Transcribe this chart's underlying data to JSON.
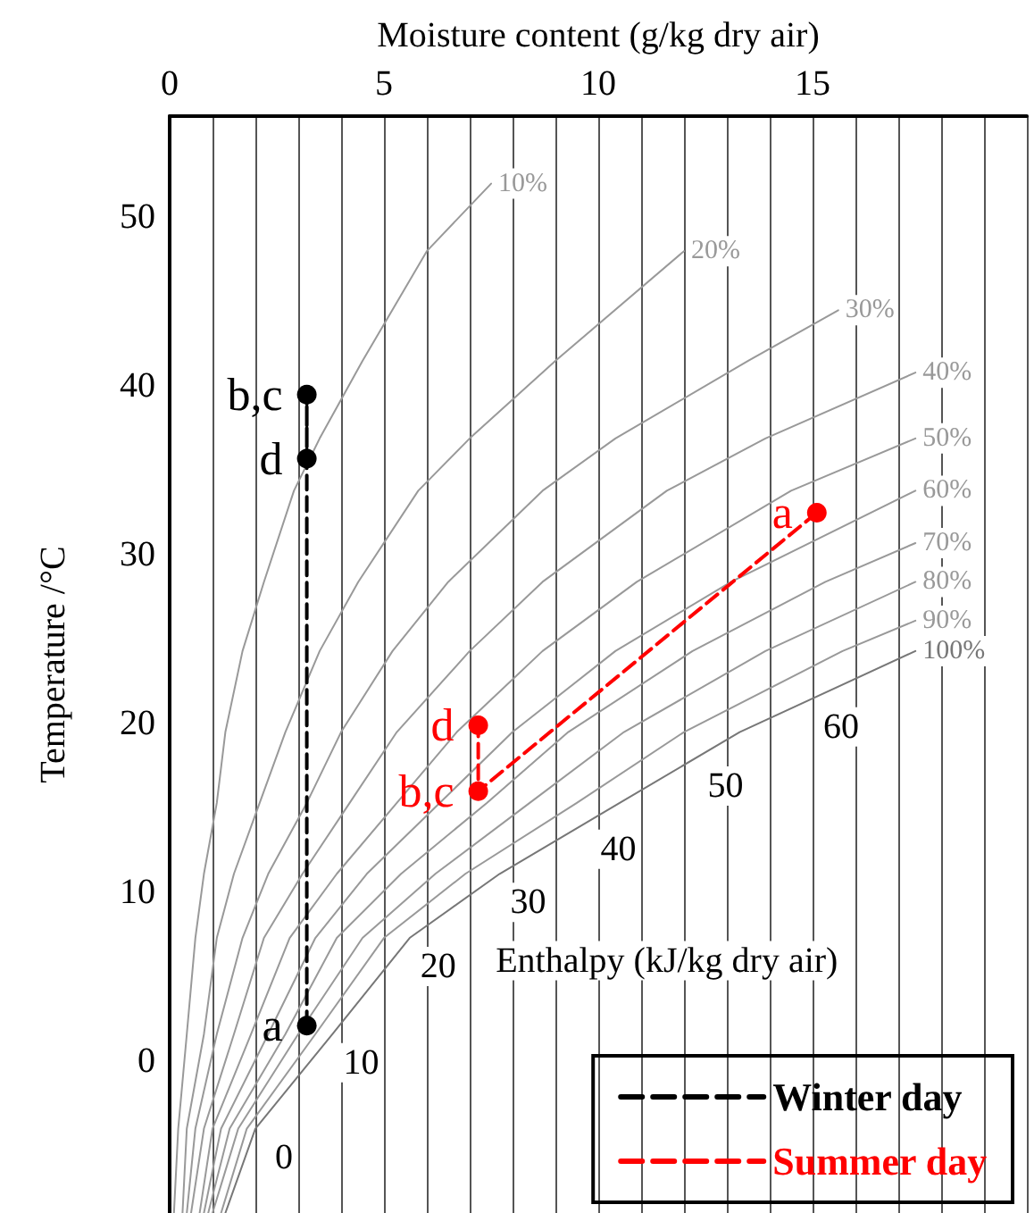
{
  "chart_data": {
    "type": "line",
    "xlabel": "Moisture content (g/kg dry air)",
    "ylabel": "Temperature /°C",
    "xlim": [
      0,
      20
    ],
    "xticks": [
      0,
      {
        "value": 1,
        "label": null
      },
      {
        "value": 2,
        "label": null
      },
      {
        "value": 3,
        "label": null
      },
      {
        "value": 4,
        "label": null
      },
      5,
      {
        "value": 6,
        "label": null
      },
      {
        "value": 7,
        "label": null
      },
      {
        "value": 8,
        "label": null
      },
      {
        "value": 9,
        "label": null
      },
      10,
      {
        "value": 11,
        "label": null
      },
      {
        "value": 12,
        "label": null
      },
      {
        "value": 13,
        "label": null
      },
      {
        "value": 14,
        "label": null
      },
      15,
      {
        "value": 16,
        "label": null
      },
      {
        "value": 17,
        "label": null
      },
      {
        "value": 18,
        "label": null
      },
      {
        "value": 19,
        "label": null
      },
      {
        "value": 20,
        "label": null
      }
    ],
    "ylim": [
      -9,
      56
    ],
    "yticks": [
      0,
      10,
      20,
      30,
      40,
      50
    ],
    "grid": "x",
    "legend": "bottom right",
    "marker": "circle",
    "line_style": "dashed",
    "series": [
      {
        "name": "10%",
        "color": "#999999",
        "marker": "none",
        "line_style": "solid",
        "x": [
          0.1,
          0.2,
          0.4,
          0.6,
          0.8,
          1.1,
          1.3,
          1.7,
          2.2,
          2.9,
          3.5,
          4.5,
          6.0,
          7.5
        ],
        "values": [
          -9,
          -4,
          1.6,
          7.3,
          11.1,
          15.3,
          19.5,
          24.3,
          28.4,
          33.8,
          36.9,
          41.5,
          48,
          52
        ]
      },
      {
        "name": "20%",
        "color": "#999999",
        "marker": "none",
        "line_style": "solid",
        "x": [
          0.3,
          0.4,
          0.8,
          1.1,
          1.5,
          2.1,
          2.7,
          3.5,
          4.4,
          5.8,
          7.0,
          9.0,
          12.0
        ],
        "values": [
          -9,
          -4,
          1.6,
          7.3,
          11.1,
          15.3,
          19.5,
          24.3,
          28.4,
          33.8,
          36.9,
          41.5,
          48
        ]
      },
      {
        "name": "30%",
        "color": "#999999",
        "marker": "none",
        "line_style": "solid",
        "x": [
          0.4,
          0.6,
          1.1,
          1.7,
          2.3,
          3.2,
          4.0,
          5.2,
          6.5,
          8.7,
          10.4,
          13.5,
          15.6
        ],
        "values": [
          -9,
          -4,
          1.6,
          7.3,
          11.1,
          15.3,
          19.5,
          24.3,
          28.4,
          33.8,
          36.9,
          41.5,
          44.5
        ]
      },
      {
        "name": "40%",
        "color": "#999999",
        "marker": "none",
        "line_style": "solid",
        "x": [
          0.5,
          0.8,
          1.5,
          2.2,
          3.1,
          4.2,
          5.3,
          7.0,
          8.7,
          11.6,
          13.9,
          17.4
        ],
        "values": [
          -9,
          -4,
          1.6,
          7.3,
          11.1,
          15.3,
          19.5,
          24.3,
          28.4,
          33.8,
          36.9,
          40.8
        ]
      },
      {
        "name": "50%",
        "color": "#999999",
        "marker": "none",
        "line_style": "solid",
        "x": [
          0.7,
          1.0,
          1.9,
          2.8,
          3.9,
          5.3,
          6.7,
          8.7,
          10.9,
          14.5,
          17.4
        ],
        "values": [
          -9,
          -4,
          1.6,
          7.3,
          11.1,
          15.3,
          19.5,
          24.3,
          28.4,
          33.8,
          36.9
        ]
      },
      {
        "name": "60%",
        "color": "#999999",
        "marker": "none",
        "line_style": "solid",
        "x": [
          0.8,
          1.2,
          2.3,
          3.4,
          4.6,
          6.3,
          8.0,
          10.4,
          13.1,
          17.4
        ],
        "values": [
          -9,
          -4,
          1.6,
          7.3,
          11.1,
          15.3,
          19.5,
          24.3,
          28.4,
          33.8
        ]
      },
      {
        "name": "70%",
        "color": "#999999",
        "marker": "none",
        "line_style": "solid",
        "x": [
          0.9,
          1.4,
          2.7,
          3.9,
          5.4,
          7.4,
          9.3,
          12.2,
          15.3,
          17.4
        ],
        "values": [
          -9,
          -4,
          1.6,
          7.3,
          11.1,
          15.3,
          19.5,
          24.3,
          28.4,
          30.7
        ]
      },
      {
        "name": "80%",
        "color": "#999999",
        "marker": "none",
        "line_style": "solid",
        "x": [
          1.0,
          1.6,
          3.0,
          4.5,
          6.2,
          8.4,
          10.6,
          13.9,
          17.4
        ],
        "values": [
          -9,
          -4,
          1.6,
          7.3,
          11.1,
          15.3,
          19.5,
          24.3,
          28.4
        ]
      },
      {
        "name": "90%",
        "color": "#999999",
        "marker": "none",
        "line_style": "solid",
        "x": [
          1.2,
          1.8,
          3.4,
          5.0,
          6.9,
          9.5,
          12.0,
          15.7,
          17.4
        ],
        "values": [
          -9,
          -4,
          1.6,
          7.3,
          11.1,
          15.3,
          19.5,
          24.3,
          26.1
        ]
      },
      {
        "name": "100%",
        "color": "#777777",
        "marker": "none",
        "line_style": "solid",
        "x": [
          1.3,
          2.0,
          3.8,
          5.6,
          7.7,
          10.5,
          13.3,
          17.4
        ],
        "values": [
          -9,
          -4,
          1.6,
          7.3,
          11.1,
          15.3,
          19.5,
          24.3
        ]
      },
      {
        "name": "Winter day",
        "color": "#000000",
        "x": [
          3.2,
          3.2,
          3.2
        ],
        "values": [
          2.1,
          39.5,
          35.7
        ],
        "value_labels": [
          "a",
          "b,c",
          "d"
        ]
      },
      {
        "name": "Summer day",
        "color": "#ff0000",
        "x": [
          15.1,
          7.2,
          7.2
        ],
        "values": [
          32.5,
          16.0,
          19.9
        ],
        "value_labels": [
          "a",
          "b,c",
          "d"
        ]
      }
    ],
    "annotations": [
      {
        "text": "0",
        "x": 2.0,
        "y": -4
      },
      {
        "text": "10",
        "x": 3.8,
        "y": 1.6
      },
      {
        "text": "20",
        "x": 5.6,
        "y": 7.3
      },
      {
        "text": "30",
        "x": 7.7,
        "y": 11.1
      },
      {
        "text": "40",
        "x": 9.8,
        "y": 14.25
      },
      {
        "text": "50",
        "x": 12.3,
        "y": 18.0
      },
      {
        "text": "60",
        "x": 15.0,
        "y": 21.5
      },
      "Enthalpy (kJ/kg dry air)"
    ]
  }
}
